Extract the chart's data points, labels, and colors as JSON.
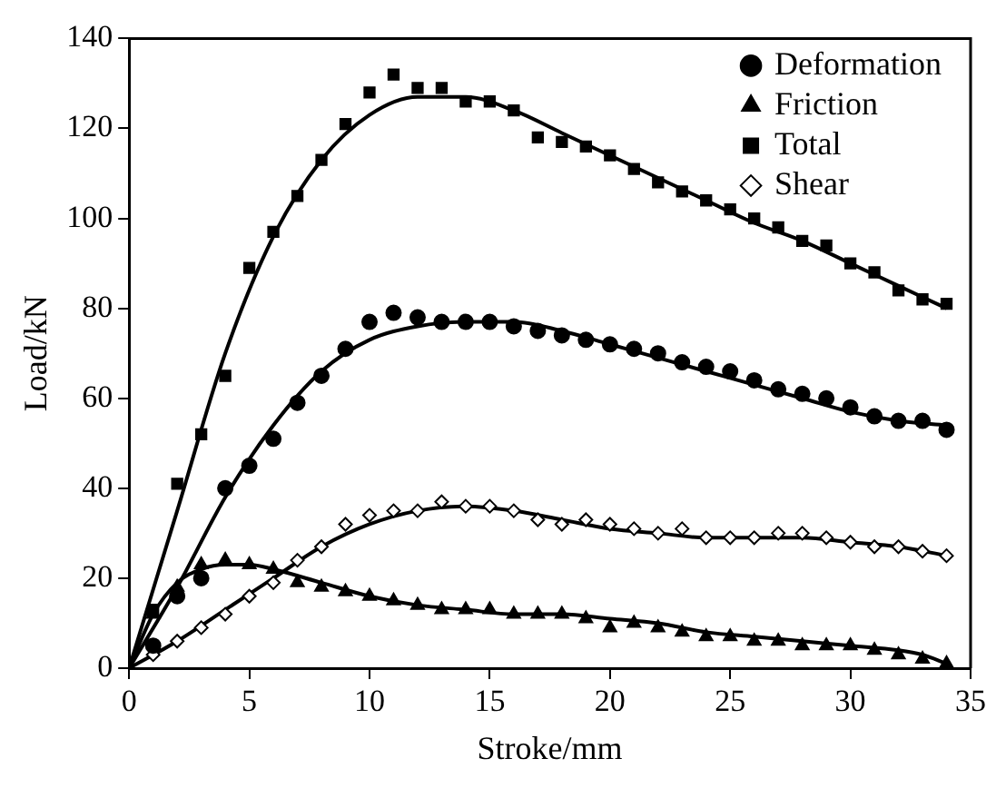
{
  "chart_data": {
    "type": "scatter",
    "xlabel": "Stroke/mm",
    "ylabel": "Load/kN",
    "xlim": [
      0,
      35
    ],
    "xticks": [
      0,
      5,
      10,
      15,
      20,
      25,
      30,
      35
    ],
    "ylim": [
      0,
      140
    ],
    "yticks": [
      0,
      20,
      40,
      60,
      80,
      100,
      120,
      140
    ],
    "grid": false,
    "legend": "top right",
    "series": [
      {
        "name": "Deformation",
        "type": "scatter",
        "marker": "circle",
        "color": "#000000",
        "x": [
          1,
          2,
          3,
          4,
          5,
          6,
          7,
          8,
          9,
          10,
          11,
          12,
          13,
          14,
          15,
          16,
          17,
          18,
          19,
          20,
          21,
          22,
          23,
          24,
          25,
          26,
          27,
          28,
          29,
          30,
          31,
          32,
          33,
          34
        ],
        "values": [
          5,
          16,
          20,
          40,
          45,
          51,
          59,
          65,
          71,
          77,
          79,
          78,
          77,
          77,
          77,
          76,
          75,
          74,
          73,
          72,
          71,
          70,
          68,
          67,
          66,
          64,
          62,
          61,
          60,
          58,
          56,
          55,
          55,
          53
        ]
      },
      {
        "name": "Friction",
        "type": "scatter",
        "marker": "triangle",
        "color": "#000000",
        "x": [
          1,
          2,
          3,
          4,
          5,
          6,
          7,
          8,
          9,
          10,
          11,
          12,
          13,
          14,
          15,
          16,
          17,
          18,
          19,
          20,
          21,
          22,
          23,
          24,
          25,
          26,
          27,
          28,
          29,
          30,
          31,
          32,
          33,
          34
        ],
        "values": [
          12,
          18,
          23,
          24,
          23,
          22,
          19,
          18,
          17,
          16,
          15,
          14,
          13,
          13,
          13,
          12,
          12,
          12,
          11,
          9,
          10,
          9,
          8,
          7,
          7,
          6,
          6,
          5,
          5,
          5,
          4,
          3,
          2,
          1
        ]
      },
      {
        "name": "Total",
        "type": "scatter",
        "marker": "square",
        "color": "#000000",
        "x": [
          1,
          2,
          3,
          4,
          5,
          6,
          7,
          8,
          9,
          10,
          11,
          12,
          13,
          14,
          15,
          16,
          17,
          18,
          19,
          20,
          21,
          22,
          23,
          24,
          25,
          26,
          27,
          28,
          29,
          30,
          31,
          32,
          33,
          34
        ],
        "values": [
          13,
          41,
          52,
          65,
          89,
          97,
          105,
          113,
          121,
          128,
          132,
          129,
          129,
          126,
          126,
          124,
          118,
          117,
          116,
          114,
          111,
          108,
          106,
          104,
          102,
          100,
          98,
          95,
          94,
          90,
          88,
          84,
          82,
          81
        ]
      },
      {
        "name": "Shear",
        "type": "scatter",
        "marker": "diamond",
        "color": "#000000",
        "x": [
          1,
          2,
          3,
          4,
          5,
          6,
          7,
          8,
          9,
          10,
          11,
          12,
          13,
          14,
          15,
          16,
          17,
          18,
          19,
          20,
          21,
          22,
          23,
          24,
          25,
          26,
          27,
          28,
          29,
          30,
          31,
          32,
          33,
          34
        ],
        "values": [
          3,
          6,
          9,
          12,
          16,
          19,
          24,
          27,
          32,
          34,
          35,
          35,
          37,
          36,
          36,
          35,
          33,
          32,
          33,
          32,
          31,
          30,
          31,
          29,
          29,
          29,
          30,
          30,
          29,
          28,
          27,
          27,
          26,
          25
        ]
      },
      {
        "type": "line",
        "marker": "none",
        "line_style": "solid",
        "color": "#000000",
        "x": [
          0,
          2,
          4,
          6,
          8,
          10,
          12,
          14,
          16,
          18,
          20,
          22,
          24,
          26,
          28,
          30,
          32,
          34
        ],
        "values": [
          0,
          18,
          38,
          54,
          66,
          73,
          76,
          77,
          77,
          75,
          72,
          69,
          66,
          63,
          60,
          57,
          55,
          54
        ]
      },
      {
        "type": "line",
        "marker": "none",
        "line_style": "solid",
        "color": "#000000",
        "x": [
          0,
          1,
          2,
          3,
          4,
          5,
          6,
          8,
          10,
          12,
          14,
          16,
          18,
          20,
          22,
          24,
          26,
          28,
          30,
          32,
          33,
          34
        ],
        "values": [
          0,
          12,
          19,
          22,
          23,
          23,
          22,
          19,
          16,
          14,
          13,
          12,
          12,
          11,
          10,
          8,
          7,
          6,
          5,
          4,
          3,
          1
        ]
      },
      {
        "type": "line",
        "marker": "none",
        "line_style": "solid",
        "color": "#000000",
        "x": [
          0,
          2,
          4,
          6,
          8,
          10,
          12,
          14,
          16,
          18,
          20,
          22,
          24,
          26,
          28,
          30,
          32,
          34
        ],
        "values": [
          0,
          35,
          70,
          96,
          113,
          123,
          127,
          127,
          124,
          119,
          114,
          109,
          104,
          99,
          95,
          90,
          85,
          80
        ]
      },
      {
        "type": "line",
        "marker": "none",
        "line_style": "solid",
        "color": "#000000",
        "x": [
          0,
          2,
          4,
          6,
          8,
          10,
          12,
          14,
          16,
          18,
          20,
          22,
          24,
          26,
          28,
          30,
          32,
          34
        ],
        "values": [
          0,
          6,
          13,
          20,
          27,
          32,
          35,
          36,
          35,
          33,
          31,
          30,
          29,
          29,
          29,
          28,
          27,
          25
        ]
      }
    ]
  }
}
